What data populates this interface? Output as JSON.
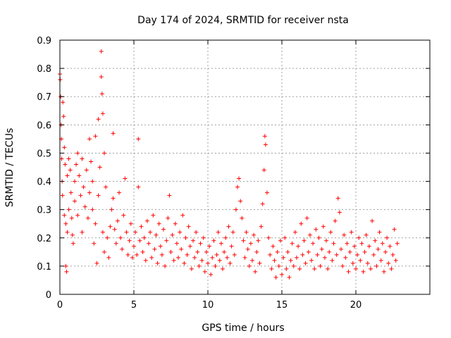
{
  "chart_data": {
    "type": "scatter",
    "title": "Day 174 of 2024, SRMTID for receiver nsta",
    "xlabel": "GPS time / hours",
    "ylabel": "SRMTID / TECUs",
    "xlim": [
      0,
      25
    ],
    "ylim": [
      0,
      0.9
    ],
    "xticks": [
      0,
      5,
      10,
      15,
      20
    ],
    "xtick_labels": [
      "0",
      "5",
      "10",
      "15",
      "20"
    ],
    "yticks": [
      0,
      0.1,
      0.2,
      0.3,
      0.4,
      0.5,
      0.6,
      0.7,
      0.8,
      0.9
    ],
    "ytick_labels": [
      "0",
      "0.1",
      "0.2",
      "0.3",
      "0.4",
      "0.5",
      "0.6",
      "0.7",
      "0.8",
      "0.9"
    ],
    "grid": true,
    "marker": "+",
    "color": "#ff0000",
    "series": [
      {
        "name": "SRMTID",
        "points": [
          [
            0.0,
            0.78
          ],
          [
            0.02,
            0.76
          ],
          [
            0.05,
            0.7
          ],
          [
            0.08,
            0.6
          ],
          [
            0.1,
            0.55
          ],
          [
            0.12,
            0.48
          ],
          [
            0.15,
            0.4
          ],
          [
            0.18,
            0.35
          ],
          [
            0.2,
            0.68
          ],
          [
            0.25,
            0.63
          ],
          [
            0.3,
            0.52
          ],
          [
            0.3,
            0.28
          ],
          [
            0.35,
            0.46
          ],
          [
            0.4,
            0.25
          ],
          [
            0.4,
            0.1
          ],
          [
            0.45,
            0.08
          ],
          [
            0.5,
            0.42
          ],
          [
            0.5,
            0.22
          ],
          [
            0.6,
            0.48
          ],
          [
            0.6,
            0.3
          ],
          [
            0.7,
            0.44
          ],
          [
            0.75,
            0.36
          ],
          [
            0.8,
            0.27
          ],
          [
            0.85,
            0.21
          ],
          [
            0.9,
            0.18
          ],
          [
            1.0,
            0.4
          ],
          [
            1.0,
            0.33
          ],
          [
            1.1,
            0.46
          ],
          [
            1.2,
            0.5
          ],
          [
            1.2,
            0.28
          ],
          [
            1.3,
            0.42
          ],
          [
            1.4,
            0.35
          ],
          [
            1.5,
            0.48
          ],
          [
            1.5,
            0.22
          ],
          [
            1.6,
            0.38
          ],
          [
            1.7,
            0.31
          ],
          [
            1.8,
            0.44
          ],
          [
            1.9,
            0.27
          ],
          [
            2.0,
            0.55
          ],
          [
            2.0,
            0.36
          ],
          [
            2.1,
            0.47
          ],
          [
            2.2,
            0.4
          ],
          [
            2.2,
            0.3
          ],
          [
            2.3,
            0.18
          ],
          [
            2.4,
            0.56
          ],
          [
            2.4,
            0.25
          ],
          [
            2.5,
            0.11
          ],
          [
            2.6,
            0.62
          ],
          [
            2.6,
            0.35
          ],
          [
            2.7,
            0.45
          ],
          [
            2.8,
            0.86
          ],
          [
            2.8,
            0.77
          ],
          [
            2.85,
            0.71
          ],
          [
            2.9,
            0.64
          ],
          [
            2.9,
            0.22
          ],
          [
            3.0,
            0.5
          ],
          [
            3.0,
            0.15
          ],
          [
            3.1,
            0.38
          ],
          [
            3.2,
            0.2
          ],
          [
            3.3,
            0.13
          ],
          [
            3.4,
            0.24
          ],
          [
            3.5,
            0.3
          ],
          [
            3.6,
            0.57
          ],
          [
            3.6,
            0.34
          ],
          [
            3.7,
            0.23
          ],
          [
            3.8,
            0.18
          ],
          [
            3.9,
            0.26
          ],
          [
            4.0,
            0.36
          ],
          [
            4.1,
            0.2
          ],
          [
            4.2,
            0.16
          ],
          [
            4.3,
            0.28
          ],
          [
            4.4,
            0.41
          ],
          [
            4.5,
            0.22
          ],
          [
            4.6,
            0.14
          ],
          [
            4.7,
            0.19
          ],
          [
            4.8,
            0.25
          ],
          [
            4.9,
            0.13
          ],
          [
            5.0,
            0.17
          ],
          [
            5.1,
            0.22
          ],
          [
            5.2,
            0.14
          ],
          [
            5.3,
            0.55
          ],
          [
            5.3,
            0.38
          ],
          [
            5.4,
            0.19
          ],
          [
            5.5,
            0.24
          ],
          [
            5.6,
            0.15
          ],
          [
            5.7,
            0.2
          ],
          [
            5.8,
            0.12
          ],
          [
            5.9,
            0.26
          ],
          [
            6.0,
            0.18
          ],
          [
            6.1,
            0.22
          ],
          [
            6.2,
            0.13
          ],
          [
            6.3,
            0.28
          ],
          [
            6.4,
            0.16
          ],
          [
            6.5,
            0.21
          ],
          [
            6.6,
            0.11
          ],
          [
            6.7,
            0.25
          ],
          [
            6.8,
            0.17
          ],
          [
            6.9,
            0.14
          ],
          [
            7.0,
            0.23
          ],
          [
            7.1,
            0.1
          ],
          [
            7.2,
            0.19
          ],
          [
            7.3,
            0.27
          ],
          [
            7.4,
            0.35
          ],
          [
            7.5,
            0.15
          ],
          [
            7.6,
            0.21
          ],
          [
            7.7,
            0.12
          ],
          [
            7.8,
            0.25
          ],
          [
            7.9,
            0.18
          ],
          [
            8.0,
            0.13
          ],
          [
            8.1,
            0.22
          ],
          [
            8.2,
            0.16
          ],
          [
            8.3,
            0.28
          ],
          [
            8.4,
            0.11
          ],
          [
            8.5,
            0.2
          ],
          [
            8.6,
            0.14
          ],
          [
            8.7,
            0.24
          ],
          [
            8.8,
            0.17
          ],
          [
            8.9,
            0.09
          ],
          [
            9.0,
            0.19
          ],
          [
            9.1,
            0.13
          ],
          [
            9.2,
            0.22
          ],
          [
            9.3,
            0.15
          ],
          [
            9.4,
            0.1
          ],
          [
            9.5,
            0.18
          ],
          [
            9.6,
            0.12
          ],
          [
            9.7,
            0.2
          ],
          [
            9.8,
            0.08
          ],
          [
            9.9,
            0.15
          ],
          [
            10.0,
            0.11
          ],
          [
            10.1,
            0.17
          ],
          [
            10.2,
            0.07
          ],
          [
            10.3,
            0.13
          ],
          [
            10.4,
            0.19
          ],
          [
            10.5,
            0.1
          ],
          [
            10.6,
            0.14
          ],
          [
            10.7,
            0.22
          ],
          [
            10.8,
            0.12
          ],
          [
            10.9,
            0.18
          ],
          [
            11.0,
            0.09
          ],
          [
            11.1,
            0.15
          ],
          [
            11.2,
            0.2
          ],
          [
            11.3,
            0.13
          ],
          [
            11.4,
            0.24
          ],
          [
            11.5,
            0.11
          ],
          [
            11.6,
            0.17
          ],
          [
            11.7,
            0.22
          ],
          [
            11.8,
            0.14
          ],
          [
            11.9,
            0.3
          ],
          [
            12.0,
            0.38
          ],
          [
            12.1,
            0.41
          ],
          [
            12.2,
            0.33
          ],
          [
            12.3,
            0.27
          ],
          [
            12.4,
            0.19
          ],
          [
            12.5,
            0.13
          ],
          [
            12.6,
            0.22
          ],
          [
            12.7,
            0.16
          ],
          [
            12.8,
            0.1
          ],
          [
            12.9,
            0.18
          ],
          [
            13.0,
            0.12
          ],
          [
            13.1,
            0.21
          ],
          [
            13.2,
            0.08
          ],
          [
            13.3,
            0.15
          ],
          [
            13.4,
            0.19
          ],
          [
            13.5,
            0.11
          ],
          [
            13.6,
            0.24
          ],
          [
            13.7,
            0.32
          ],
          [
            13.8,
            0.44
          ],
          [
            13.85,
            0.56
          ],
          [
            13.9,
            0.53
          ],
          [
            14.0,
            0.36
          ],
          [
            14.1,
            0.2
          ],
          [
            14.2,
            0.14
          ],
          [
            14.3,
            0.09
          ],
          [
            14.4,
            0.17
          ],
          [
            14.5,
            0.12
          ],
          [
            14.6,
            0.06
          ],
          [
            14.7,
            0.15
          ],
          [
            14.8,
            0.1
          ],
          [
            14.9,
            0.19
          ],
          [
            15.0,
            0.07
          ],
          [
            15.1,
            0.13
          ],
          [
            15.2,
            0.2
          ],
          [
            15.3,
            0.09
          ],
          [
            15.4,
            0.15
          ],
          [
            15.5,
            0.06
          ],
          [
            15.6,
            0.12
          ],
          [
            15.7,
            0.18
          ],
          [
            15.8,
            0.1
          ],
          [
            15.9,
            0.22
          ],
          [
            16.0,
            0.13
          ],
          [
            16.1,
            0.17
          ],
          [
            16.2,
            0.09
          ],
          [
            16.3,
            0.25
          ],
          [
            16.4,
            0.14
          ],
          [
            16.5,
            0.19
          ],
          [
            16.6,
            0.11
          ],
          [
            16.7,
            0.27
          ],
          [
            16.8,
            0.15
          ],
          [
            16.9,
            0.21
          ],
          [
            17.0,
            0.12
          ],
          [
            17.1,
            0.18
          ],
          [
            17.2,
            0.09
          ],
          [
            17.3,
            0.23
          ],
          [
            17.4,
            0.14
          ],
          [
            17.5,
            0.2
          ],
          [
            17.6,
            0.1
          ],
          [
            17.7,
            0.16
          ],
          [
            17.8,
            0.24
          ],
          [
            17.9,
            0.13
          ],
          [
            18.0,
            0.19
          ],
          [
            18.1,
            0.09
          ],
          [
            18.2,
            0.15
          ],
          [
            18.3,
            0.22
          ],
          [
            18.4,
            0.12
          ],
          [
            18.5,
            0.18
          ],
          [
            18.6,
            0.26
          ],
          [
            18.7,
            0.14
          ],
          [
            18.8,
            0.34
          ],
          [
            18.9,
            0.29
          ],
          [
            19.0,
            0.16
          ],
          [
            19.1,
            0.1
          ],
          [
            19.2,
            0.21
          ],
          [
            19.3,
            0.13
          ],
          [
            19.4,
            0.18
          ],
          [
            19.5,
            0.08
          ],
          [
            19.6,
            0.15
          ],
          [
            19.7,
            0.22
          ],
          [
            19.8,
            0.11
          ],
          [
            19.9,
            0.17
          ],
          [
            20.0,
            0.09
          ],
          [
            20.1,
            0.14
          ],
          [
            20.2,
            0.2
          ],
          [
            20.3,
            0.12
          ],
          [
            20.4,
            0.18
          ],
          [
            20.5,
            0.08
          ],
          [
            20.6,
            0.15
          ],
          [
            20.7,
            0.21
          ],
          [
            20.8,
            0.11
          ],
          [
            20.9,
            0.17
          ],
          [
            21.0,
            0.09
          ],
          [
            21.1,
            0.26
          ],
          [
            21.2,
            0.14
          ],
          [
            21.3,
            0.19
          ],
          [
            21.4,
            0.1
          ],
          [
            21.5,
            0.16
          ],
          [
            21.6,
            0.22
          ],
          [
            21.7,
            0.12
          ],
          [
            21.8,
            0.18
          ],
          [
            21.9,
            0.08
          ],
          [
            22.0,
            0.15
          ],
          [
            22.1,
            0.2
          ],
          [
            22.2,
            0.11
          ],
          [
            22.3,
            0.17
          ],
          [
            22.4,
            0.09
          ],
          [
            22.5,
            0.14
          ],
          [
            22.6,
            0.23
          ],
          [
            22.7,
            0.12
          ],
          [
            22.8,
            0.18
          ]
        ]
      }
    ]
  }
}
